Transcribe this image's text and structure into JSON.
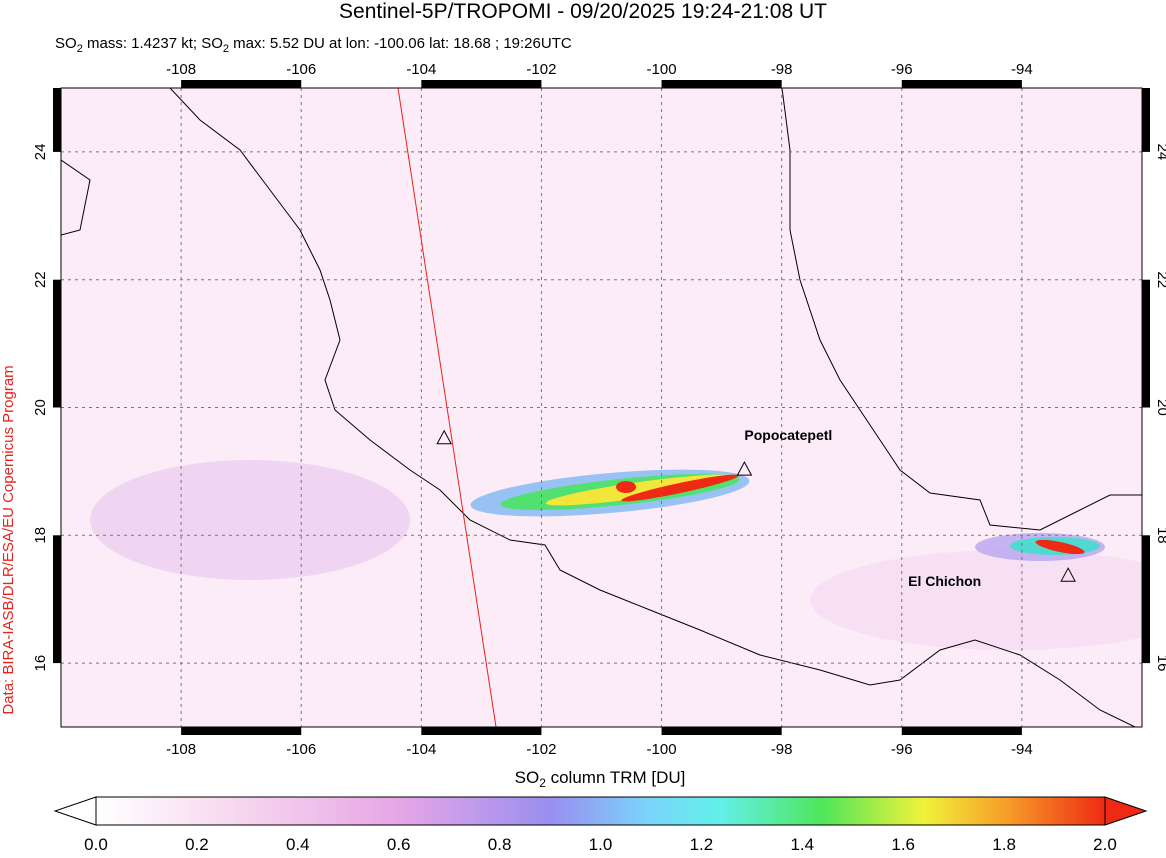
{
  "title": "Sentinel-5P/TROPOMI - 09/20/2025 19:24-21:08 UT",
  "subtitle_parts": [
    "SO",
    "2",
    " mass: 1.4237 kt; SO",
    "2",
    " max: 5.52 DU at lon: -100.06 lat: 18.68 ; 19:26UTC"
  ],
  "credit": "Data: BIRA-IASB/DLR/ESA/EU Copernicus Program",
  "map": {
    "xlim": [
      -110,
      -92
    ],
    "ylim": [
      15,
      25
    ],
    "xticks": [
      -108,
      -106,
      -104,
      -102,
      -100,
      -98,
      -96,
      -94
    ],
    "yticks": [
      16,
      18,
      20,
      22,
      24
    ],
    "grid": true
  },
  "volcanoes": [
    {
      "name": "Popocatepetl",
      "lon": -98.62,
      "lat": 19.02
    },
    {
      "name": "El Chichon",
      "lon": -93.23,
      "lat": 17.36
    },
    {
      "name": null,
      "lon": -103.62,
      "lat": 19.51
    }
  ],
  "colorbar": {
    "label_parts": [
      "SO",
      "2",
      " column TRM [DU]"
    ],
    "lim": [
      0,
      2
    ],
    "ticks": [
      {
        "value": 0,
        "label": "0.0"
      },
      0.2,
      0.4,
      0.6,
      0.8,
      {
        "value": 1,
        "label": "1.0"
      },
      1.2,
      1.4,
      1.6,
      1.8,
      {
        "value": 2,
        "label": "2.0"
      }
    ]
  }
}
